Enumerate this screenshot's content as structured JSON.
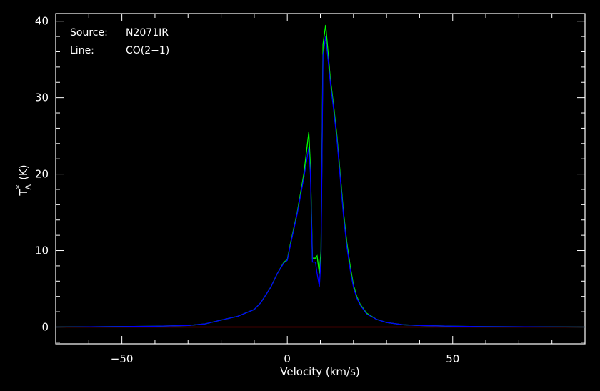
{
  "chart_data": {
    "type": "line",
    "xlabel": "Velocity (km/s)",
    "ylabel": "T",
    "ylabel_sub": "A",
    "ylabel_sup": "*",
    "ylabel_unit": "(K)",
    "xlim": [
      -70,
      90
    ],
    "ylim": [
      -2.2,
      41
    ],
    "xticks": [
      -50,
      0,
      50
    ],
    "yticks": [
      0,
      10,
      20,
      30,
      40
    ],
    "grid": false,
    "annotations": {
      "source_key": "Source:",
      "source_value": "N2071IR",
      "line_key": "Line:",
      "line_value": "CO(2−1)"
    },
    "colors": {
      "background": "#000000",
      "frame": "#ffffff",
      "series_green": "#00ff00",
      "series_blue": "#0000ff",
      "baseline": "#ff0000"
    },
    "series": [
      {
        "color": "#00ff00",
        "x": [
          -70,
          -40,
          -30,
          -25,
          -20,
          -15,
          -10,
          -8,
          -5,
          -3,
          -1,
          0,
          1,
          3,
          5,
          6.5,
          7.0,
          7.6,
          8.5,
          9.0,
          9.7,
          10.2,
          10.8,
          11.6,
          12.3,
          13.0,
          14.0,
          15.0,
          16.0,
          17.0,
          18.0,
          19.0,
          20.0,
          21.0,
          22.0,
          24.0,
          27.0,
          30.0,
          35.0,
          40.0,
          50.0,
          60.0,
          90.0
        ],
        "y": [
          0,
          0.1,
          0.2,
          0.4,
          0.9,
          1.4,
          2.3,
          3.2,
          5.2,
          7.0,
          8.5,
          8.8,
          11.0,
          15.0,
          20.0,
          25.5,
          21.0,
          9.0,
          9.0,
          9.3,
          7.0,
          10.0,
          37.0,
          39.5,
          36.0,
          32.5,
          29.0,
          25.0,
          20.0,
          15.0,
          11.0,
          8.0,
          5.5,
          4.0,
          3.0,
          1.8,
          1.0,
          0.6,
          0.3,
          0.2,
          0.1,
          0.05,
          0
        ]
      },
      {
        "color": "#0000ff",
        "x": [
          -70,
          -40,
          -30,
          -25,
          -20,
          -15,
          -10,
          -8,
          -5,
          -3,
          -1,
          0,
          1,
          3,
          5,
          6.5,
          7.0,
          7.6,
          8.5,
          9.0,
          9.7,
          10.2,
          10.8,
          11.6,
          12.3,
          13.0,
          14.0,
          15.0,
          16.0,
          17.0,
          18.0,
          19.0,
          20.0,
          21.0,
          22.0,
          24.0,
          27.0,
          30.0,
          35.0,
          40.0,
          50.0,
          60.0,
          90.0
        ],
        "y": [
          0,
          0.1,
          0.2,
          0.4,
          0.9,
          1.4,
          2.3,
          3.2,
          5.2,
          7.0,
          8.4,
          8.7,
          10.8,
          14.8,
          19.5,
          23.5,
          20.0,
          8.5,
          8.5,
          7.0,
          5.3,
          9.0,
          35.5,
          38.0,
          35.0,
          32.0,
          28.5,
          24.5,
          19.5,
          14.5,
          10.5,
          7.5,
          5.2,
          3.8,
          2.9,
          1.7,
          1.0,
          0.6,
          0.3,
          0.2,
          0.1,
          0.05,
          0
        ]
      }
    ],
    "baseline": {
      "color": "#ff0000",
      "y": 0
    }
  }
}
